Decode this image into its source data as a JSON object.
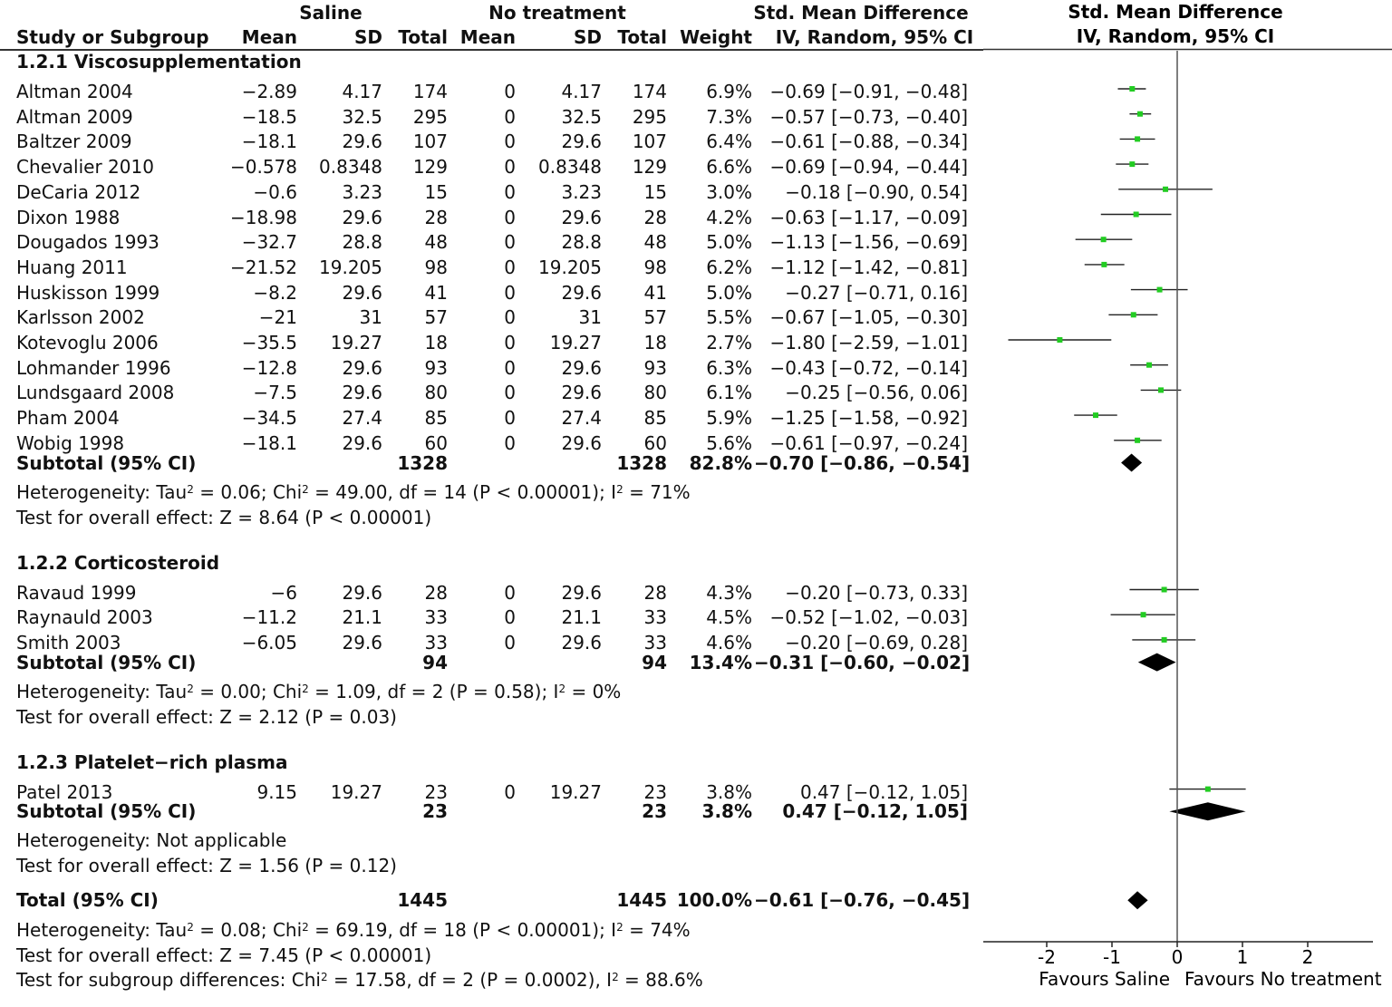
{
  "header": {
    "group1": "Saline",
    "group2": "No treatment",
    "effect": "Std. Mean Difference",
    "col_study": "Study or Subgroup",
    "col_mean": "Mean",
    "col_sd": "SD",
    "col_total": "Total",
    "col_weight": "Weight",
    "col_ci": "IV, Random, 95% CI",
    "plot_title": "Std. Mean Difference",
    "plot_subtitle": "IV, Random, 95% CI"
  },
  "chart_data": {
    "type": "forest",
    "xlim": [
      -2.8,
      3.1
    ],
    "ticks": [
      "-2",
      "-1",
      "0",
      "1",
      "2"
    ],
    "tick_values": [
      -2,
      -1,
      0,
      1,
      2
    ],
    "favours_left": "Favours Saline",
    "favours_right": "Favours No treatment",
    "marker_color": "#22cc22",
    "groups": [
      {
        "title": "1.2.1 Viscosupplementation",
        "studies": [
          {
            "name": "Altman 2004",
            "m1": "−2.89",
            "sd1": "4.17",
            "n1": "174",
            "m2": "0",
            "sd2": "4.17",
            "n2": "174",
            "weight": "6.9%",
            "ci": "−0.69 [−0.91, −0.48]",
            "est": -0.69,
            "lo": -0.91,
            "hi": -0.48
          },
          {
            "name": "Altman 2009",
            "m1": "−18.5",
            "sd1": "32.5",
            "n1": "295",
            "m2": "0",
            "sd2": "32.5",
            "n2": "295",
            "weight": "7.3%",
            "ci": "−0.57 [−0.73, −0.40]",
            "est": -0.57,
            "lo": -0.73,
            "hi": -0.4
          },
          {
            "name": "Baltzer 2009",
            "m1": "−18.1",
            "sd1": "29.6",
            "n1": "107",
            "m2": "0",
            "sd2": "29.6",
            "n2": "107",
            "weight": "6.4%",
            "ci": "−0.61 [−0.88, −0.34]",
            "est": -0.61,
            "lo": -0.88,
            "hi": -0.34
          },
          {
            "name": "Chevalier 2010",
            "m1": "−0.578",
            "sd1": "0.8348",
            "n1": "129",
            "m2": "0",
            "sd2": "0.8348",
            "n2": "129",
            "weight": "6.6%",
            "ci": "−0.69 [−0.94, −0.44]",
            "est": -0.69,
            "lo": -0.94,
            "hi": -0.44
          },
          {
            "name": "DeCaria 2012",
            "m1": "−0.6",
            "sd1": "3.23",
            "n1": "15",
            "m2": "0",
            "sd2": "3.23",
            "n2": "15",
            "weight": "3.0%",
            "ci": "−0.18 [−0.90, 0.54]",
            "est": -0.18,
            "lo": -0.9,
            "hi": 0.54
          },
          {
            "name": "Dixon 1988",
            "m1": "−18.98",
            "sd1": "29.6",
            "n1": "28",
            "m2": "0",
            "sd2": "29.6",
            "n2": "28",
            "weight": "4.2%",
            "ci": "−0.63 [−1.17, −0.09]",
            "est": -0.63,
            "lo": -1.17,
            "hi": -0.09
          },
          {
            "name": "Dougados 1993",
            "m1": "−32.7",
            "sd1": "28.8",
            "n1": "48",
            "m2": "0",
            "sd2": "28.8",
            "n2": "48",
            "weight": "5.0%",
            "ci": "−1.13 [−1.56, −0.69]",
            "est": -1.13,
            "lo": -1.56,
            "hi": -0.69
          },
          {
            "name": "Huang 2011",
            "m1": "−21.52",
            "sd1": "19.205",
            "n1": "98",
            "m2": "0",
            "sd2": "19.205",
            "n2": "98",
            "weight": "6.2%",
            "ci": "−1.12 [−1.42, −0.81]",
            "est": -1.12,
            "lo": -1.42,
            "hi": -0.81
          },
          {
            "name": "Huskisson 1999",
            "m1": "−8.2",
            "sd1": "29.6",
            "n1": "41",
            "m2": "0",
            "sd2": "29.6",
            "n2": "41",
            "weight": "5.0%",
            "ci": "−0.27 [−0.71, 0.16]",
            "est": -0.27,
            "lo": -0.71,
            "hi": 0.16
          },
          {
            "name": "Karlsson 2002",
            "m1": "−21",
            "sd1": "31",
            "n1": "57",
            "m2": "0",
            "sd2": "31",
            "n2": "57",
            "weight": "5.5%",
            "ci": "−0.67 [−1.05, −0.30]",
            "est": -0.67,
            "lo": -1.05,
            "hi": -0.3
          },
          {
            "name": "Kotevoglu 2006",
            "m1": "−35.5",
            "sd1": "19.27",
            "n1": "18",
            "m2": "0",
            "sd2": "19.27",
            "n2": "18",
            "weight": "2.7%",
            "ci": "−1.80 [−2.59, −1.01]",
            "est": -1.8,
            "lo": -2.59,
            "hi": -1.01
          },
          {
            "name": "Lohmander 1996",
            "m1": "−12.8",
            "sd1": "29.6",
            "n1": "93",
            "m2": "0",
            "sd2": "29.6",
            "n2": "93",
            "weight": "6.3%",
            "ci": "−0.43 [−0.72, −0.14]",
            "est": -0.43,
            "lo": -0.72,
            "hi": -0.14
          },
          {
            "name": "Lundsgaard 2008",
            "m1": "−7.5",
            "sd1": "29.6",
            "n1": "80",
            "m2": "0",
            "sd2": "29.6",
            "n2": "80",
            "weight": "6.1%",
            "ci": "−0.25 [−0.56, 0.06]",
            "est": -0.25,
            "lo": -0.56,
            "hi": 0.06
          },
          {
            "name": "Pham 2004",
            "m1": "−34.5",
            "sd1": "27.4",
            "n1": "85",
            "m2": "0",
            "sd2": "27.4",
            "n2": "85",
            "weight": "5.9%",
            "ci": "−1.25 [−1.58, −0.92]",
            "est": -1.25,
            "lo": -1.58,
            "hi": -0.92
          },
          {
            "name": "Wobig 1998",
            "m1": "−18.1",
            "sd1": "29.6",
            "n1": "60",
            "m2": "0",
            "sd2": "29.6",
            "n2": "60",
            "weight": "5.6%",
            "ci": "−0.61 [−0.97, −0.24]",
            "est": -0.61,
            "lo": -0.97,
            "hi": -0.24
          }
        ],
        "subtotal": {
          "label": "Subtotal (95% CI)",
          "n1": "1328",
          "n2": "1328",
          "weight": "82.8%",
          "ci": "−0.70 [−0.86, −0.54]",
          "est": -0.7,
          "lo": -0.86,
          "hi": -0.54
        },
        "heterogeneity": "Heterogeneity: Tau² = 0.06; Chi² = 49.00, df = 14 (P < 0.00001); I² = 71%",
        "overall": "Test for overall effect: Z = 8.64 (P < 0.00001)"
      },
      {
        "title": "1.2.2 Corticosteroid",
        "studies": [
          {
            "name": "Ravaud 1999",
            "m1": "−6",
            "sd1": "29.6",
            "n1": "28",
            "m2": "0",
            "sd2": "29.6",
            "n2": "28",
            "weight": "4.3%",
            "ci": "−0.20 [−0.73, 0.33]",
            "est": -0.2,
            "lo": -0.73,
            "hi": 0.33
          },
          {
            "name": "Raynauld 2003",
            "m1": "−11.2",
            "sd1": "21.1",
            "n1": "33",
            "m2": "0",
            "sd2": "21.1",
            "n2": "33",
            "weight": "4.5%",
            "ci": "−0.52 [−1.02, −0.03]",
            "est": -0.52,
            "lo": -1.02,
            "hi": -0.03
          },
          {
            "name": "Smith 2003",
            "m1": "−6.05",
            "sd1": "29.6",
            "n1": "33",
            "m2": "0",
            "sd2": "29.6",
            "n2": "33",
            "weight": "4.6%",
            "ci": "−0.20 [−0.69, 0.28]",
            "est": -0.2,
            "lo": -0.69,
            "hi": 0.28
          }
        ],
        "subtotal": {
          "label": "Subtotal (95% CI)",
          "n1": "94",
          "n2": "94",
          "weight": "13.4%",
          "ci": "−0.31 [−0.60, −0.02]",
          "est": -0.31,
          "lo": -0.6,
          "hi": -0.02
        },
        "heterogeneity": "Heterogeneity: Tau² = 0.00; Chi² = 1.09, df = 2 (P = 0.58); I² = 0%",
        "overall": "Test for overall effect: Z = 2.12 (P = 0.03)"
      },
      {
        "title": "1.2.3 Platelet−rich plasma",
        "studies": [
          {
            "name": "Patel 2013",
            "m1": "9.15",
            "sd1": "19.27",
            "n1": "23",
            "m2": "0",
            "sd2": "19.27",
            "n2": "23",
            "weight": "3.8%",
            "ci": "0.47 [−0.12, 1.05]",
            "est": 0.47,
            "lo": -0.12,
            "hi": 1.05
          }
        ],
        "subtotal": {
          "label": "Subtotal (95% CI)",
          "n1": "23",
          "n2": "23",
          "weight": "3.8%",
          "ci": "0.47 [−0.12, 1.05]",
          "est": 0.47,
          "lo": -0.12,
          "hi": 1.05
        },
        "heterogeneity": "Heterogeneity: Not applicable",
        "overall": "Test for overall effect: Z = 1.56 (P = 0.12)"
      }
    ],
    "total": {
      "label": "Total (95% CI)",
      "n1": "1445",
      "n2": "1445",
      "weight": "100.0%",
      "ci": "−0.61 [−0.76, −0.45]",
      "est": -0.61,
      "lo": -0.76,
      "hi": -0.45,
      "heterogeneity": "Heterogeneity: Tau² = 0.08; Chi² = 69.19, df = 18 (P < 0.00001); I² = 74%",
      "overall": "Test for overall effect: Z = 7.45 (P < 0.00001)",
      "subgroup": "Test for subgroup differences: Chi² = 17.58, df = 2 (P = 0.0002), I² = 88.6%"
    }
  }
}
